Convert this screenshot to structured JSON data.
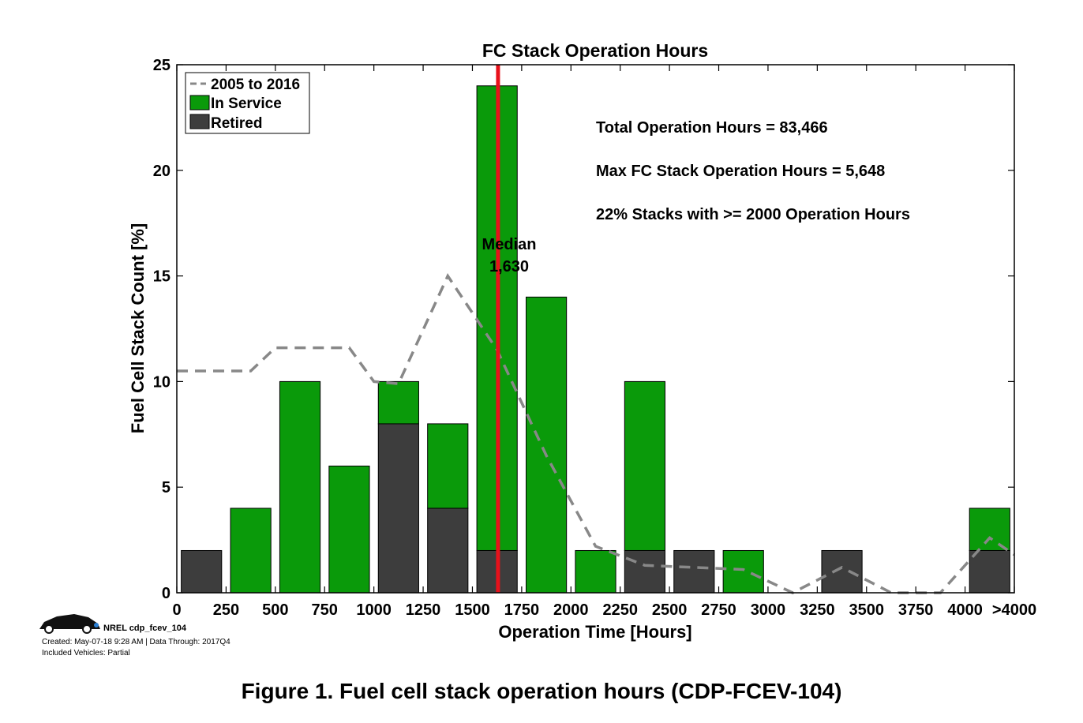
{
  "chart_data": {
    "type": "bar",
    "title": "FC Stack Operation Hours",
    "xlabel": "Operation Time [Hours]",
    "ylabel": "Fuel Cell Stack Count [%]",
    "ylim": [
      0,
      25
    ],
    "yticks": [
      "0",
      "5",
      "10",
      "15",
      "20",
      "25"
    ],
    "xticks": [
      "0",
      "250",
      "500",
      "750",
      "1000",
      "1250",
      "1500",
      "1750",
      "2000",
      "2250",
      "2500",
      "2750",
      "3000",
      "3250",
      "3500",
      "3750",
      "4000",
      ">4000"
    ],
    "bin_width": 250,
    "bars": [
      {
        "bin_start": 0,
        "retired": 2,
        "in_service": 0
      },
      {
        "bin_start": 250,
        "retired": 0,
        "in_service": 4
      },
      {
        "bin_start": 500,
        "retired": 0,
        "in_service": 10
      },
      {
        "bin_start": 750,
        "retired": 0,
        "in_service": 6
      },
      {
        "bin_start": 1000,
        "retired": 8,
        "in_service": 2
      },
      {
        "bin_start": 1250,
        "retired": 4,
        "in_service": 4
      },
      {
        "bin_start": 1500,
        "retired": 2,
        "in_service": 22
      },
      {
        "bin_start": 1750,
        "retired": 0,
        "in_service": 14
      },
      {
        "bin_start": 2000,
        "retired": 0,
        "in_service": 2
      },
      {
        "bin_start": 2250,
        "retired": 2,
        "in_service": 8
      },
      {
        "bin_start": 2500,
        "retired": 2,
        "in_service": 0
      },
      {
        "bin_start": 2750,
        "retired": 0,
        "in_service": 2
      },
      {
        "bin_start": 3000,
        "retired": 0,
        "in_service": 0
      },
      {
        "bin_start": 3250,
        "retired": 2,
        "in_service": 0
      },
      {
        "bin_start": 3500,
        "retired": 0,
        "in_service": 0
      },
      {
        "bin_start": 3750,
        "retired": 0,
        "in_service": 0
      },
      {
        "bin_start": 4000,
        "retired": 2,
        "in_service": 2
      }
    ],
    "line_series": {
      "name": "2005 to 2016",
      "x": [
        0,
        375,
        500,
        875,
        1000,
        1125,
        1375,
        1625,
        1875,
        2125,
        2375,
        2625,
        2875,
        3125,
        3375,
        3625,
        3875,
        4125,
        4250
      ],
      "y": [
        10.5,
        10.5,
        11.6,
        11.6,
        10.0,
        9.9,
        15.0,
        11.5,
        6.5,
        2.2,
        1.3,
        1.2,
        1.1,
        0.0,
        1.2,
        0.0,
        0.0,
        2.6,
        1.8
      ]
    },
    "median": {
      "value": 1630,
      "label": "Median",
      "value_label": "1,630",
      "color": "#e8111b"
    },
    "legend": {
      "placement": "top-left",
      "entries": [
        {
          "label": "2005 to 2016",
          "kind": "dashed-line",
          "color": "#888888"
        },
        {
          "label": "In Service",
          "kind": "patch",
          "color": "#0a9a0a"
        },
        {
          "label": "Retired",
          "kind": "patch",
          "color": "#3d3d3d"
        }
      ]
    },
    "annotations": [
      "Total Operation Hours = 83,466",
      "Max FC Stack Operation Hours = 5,648",
      "22% Stacks with >= 2000 Operation Hours"
    ],
    "colors": {
      "in_service": "#0a9a0a",
      "retired": "#3d3d3d",
      "line": "#888888",
      "median": "#e8111b"
    },
    "grid": false
  },
  "footer": {
    "brand": "NREL cdp_fcev_104",
    "created": "Created: May-07-18  9:28 AM | Data Through: 2017Q4",
    "included": "Included Vehicles: Partial",
    "icon": "car-icon"
  },
  "caption": "Figure 1. Fuel cell stack operation hours (CDP-FCEV-104)"
}
